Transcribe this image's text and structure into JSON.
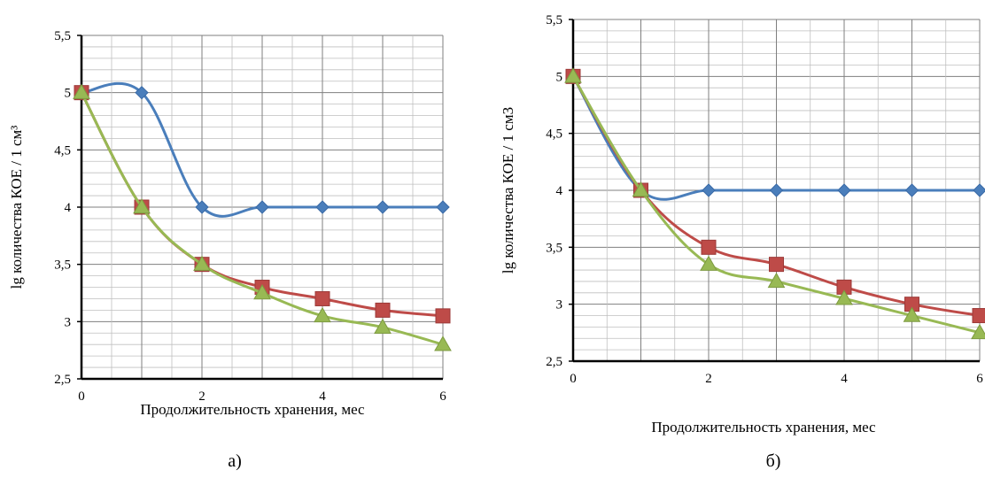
{
  "chart_data": [
    {
      "type": "line",
      "caption": "а)",
      "title": "",
      "xlabel": "Продолжительность хранения, мес",
      "ylabel": "lg количества КОЕ / 1 см³",
      "xlim": [
        0,
        6
      ],
      "ylim": [
        2.5,
        5.5
      ],
      "x_ticks": [
        0,
        2,
        4,
        6
      ],
      "y_ticks": [
        "2,5",
        "3",
        "3,5",
        "4",
        "4,5",
        "5",
        "5,5"
      ],
      "grid": true,
      "legend": "none",
      "series": [
        {
          "x": [
            0,
            1,
            2,
            3,
            4,
            5,
            6
          ],
          "values": [
            5,
            5,
            4,
            4,
            4,
            4,
            4
          ],
          "color": "#4a7ebb",
          "marker": "diamond"
        },
        {
          "x": [
            0,
            1,
            2,
            3,
            4,
            5,
            6
          ],
          "values": [
            5,
            4,
            3.5,
            3.3,
            3.2,
            3.1,
            3.05
          ],
          "color": "#be4b48",
          "marker": "square"
        },
        {
          "x": [
            0,
            1,
            2,
            3,
            4,
            5,
            6
          ],
          "values": [
            5,
            4,
            3.5,
            3.25,
            3.05,
            2.95,
            2.8
          ],
          "color": "#98b954",
          "marker": "triangle"
        }
      ]
    },
    {
      "type": "line",
      "caption": "б)",
      "title": "",
      "xlabel": "Продолжительность хранения, мес",
      "ylabel": "lg количества КОЕ / 1 см3",
      "xlim": [
        0,
        6
      ],
      "ylim": [
        2.5,
        5.5
      ],
      "x_ticks": [
        0,
        2,
        4,
        6
      ],
      "y_ticks": [
        "2,5",
        "3",
        "3,5",
        "4",
        "4,5",
        "5",
        "5,5"
      ],
      "grid": true,
      "legend": "none",
      "series": [
        {
          "x": [
            0,
            1,
            2,
            3,
            4,
            5,
            6
          ],
          "values": [
            5,
            4,
            4,
            4,
            4,
            4,
            4
          ],
          "color": "#4a7ebb",
          "marker": "diamond"
        },
        {
          "x": [
            0,
            1,
            2,
            3,
            4,
            5,
            6
          ],
          "values": [
            5,
            4,
            3.5,
            3.35,
            3.15,
            3.0,
            2.9
          ],
          "color": "#be4b48",
          "marker": "square"
        },
        {
          "x": [
            0,
            1,
            2,
            3,
            4,
            5,
            6
          ],
          "values": [
            5,
            4,
            3.35,
            3.2,
            3.05,
            2.9,
            2.75
          ],
          "color": "#98b954",
          "marker": "triangle"
        }
      ]
    }
  ]
}
